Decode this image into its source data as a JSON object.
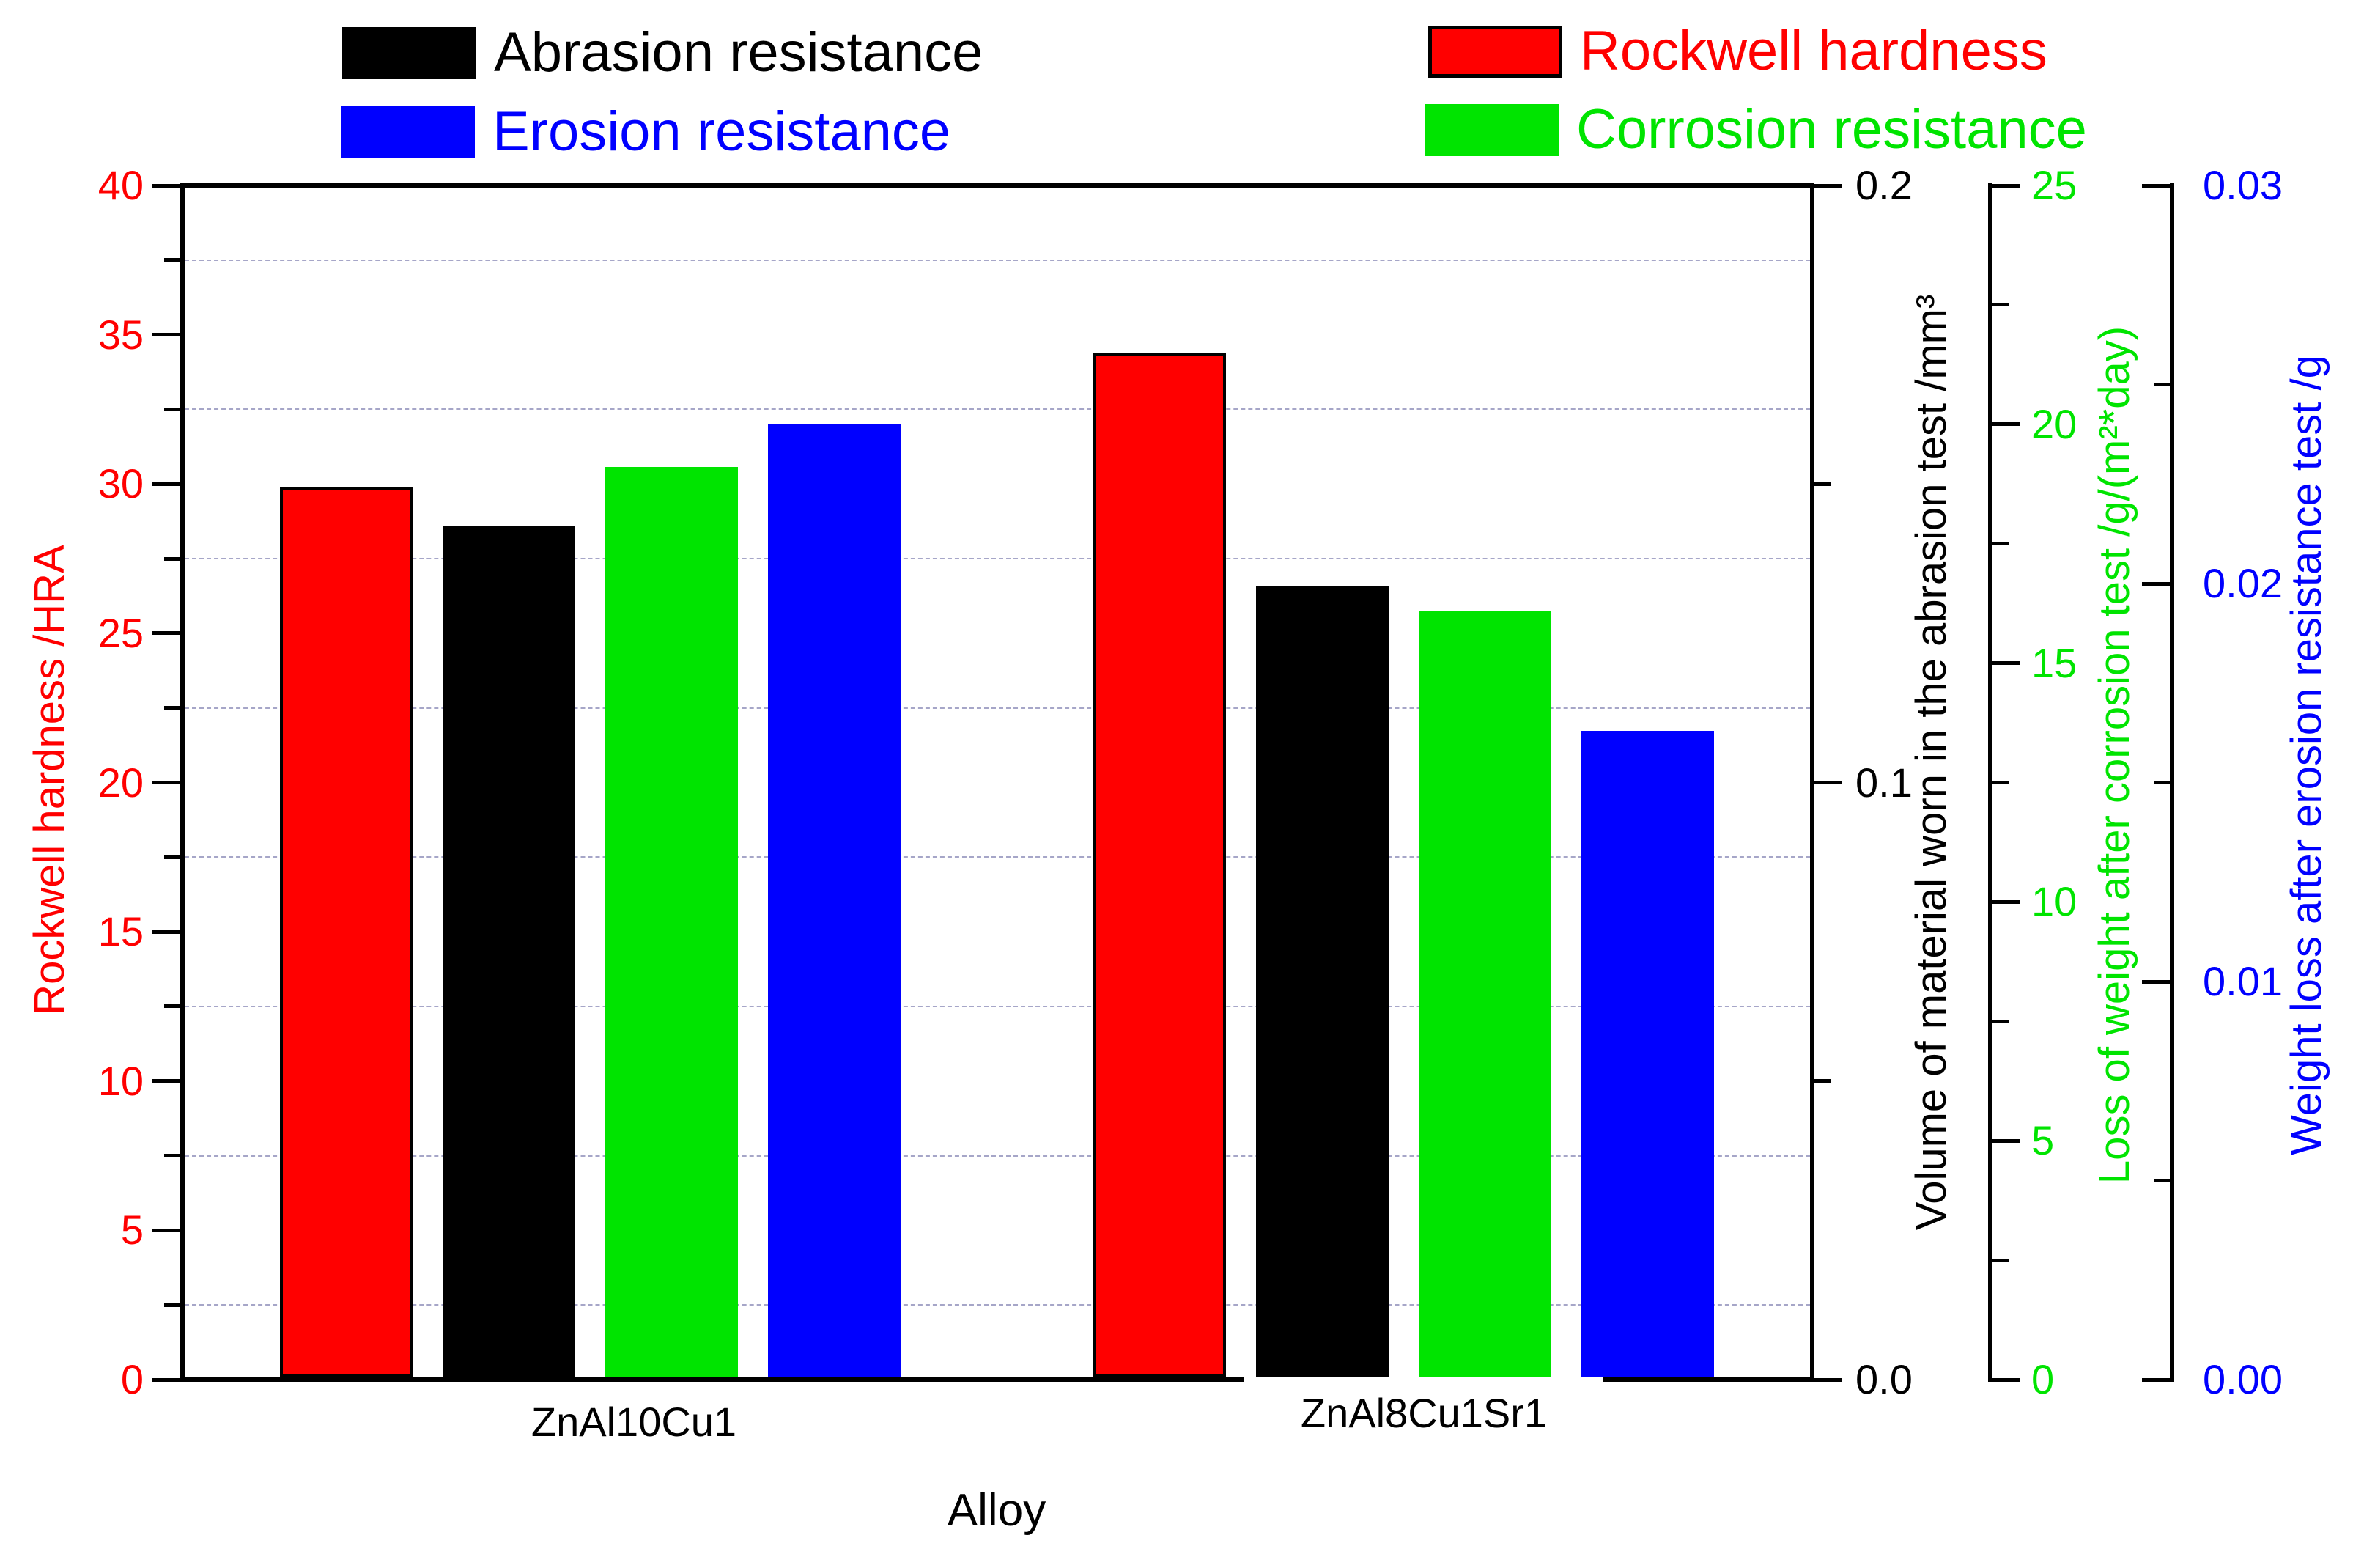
{
  "legend": {
    "items": [
      {
        "label": "Abrasion resistance",
        "color": "#000000",
        "text_color": "#000000",
        "bordered": false
      },
      {
        "label": "Erosion resistance",
        "color": "#0000ff",
        "text_color": "#0000ff",
        "bordered": false
      },
      {
        "label": "Rockwell hardness",
        "color": "#ff0000",
        "text_color": "#ff0000",
        "bordered": true
      },
      {
        "label": "Corrosion resistance",
        "color": "#00e400",
        "text_color": "#00e400",
        "bordered": false
      }
    ]
  },
  "chart_data": {
    "type": "bar",
    "categories": [
      "ZnAl10Cu1",
      "ZnAl8Cu1Sr1"
    ],
    "xlabel": "Alloy",
    "series": [
      {
        "name": "Rockwell hardness",
        "axis": "rockwell",
        "color": "#ff0000",
        "border": "#000000",
        "values": [
          29.9,
          34.4
        ]
      },
      {
        "name": "Abrasion resistance",
        "axis": "abrasion",
        "color": "#000000",
        "border": "",
        "values": [
          0.143,
          0.133
        ]
      },
      {
        "name": "Corrosion resistance",
        "axis": "corrosion",
        "color": "#00e400",
        "border": "",
        "values": [
          19.1,
          16.1
        ]
      },
      {
        "name": "Erosion resistance",
        "axis": "erosion",
        "color": "#0000ff",
        "border": "",
        "values": [
          0.024,
          0.0163
        ]
      }
    ],
    "axes": [
      {
        "id": "rockwell",
        "label": "Rockwell hardness /HRA",
        "color": "#ff0000",
        "range": [
          0,
          40
        ],
        "major": 5,
        "minor": 2.5,
        "tick_labels": [
          "0",
          "5",
          "10",
          "15",
          "20",
          "25",
          "30",
          "35",
          "40"
        ]
      },
      {
        "id": "abrasion",
        "label": "Volume of material worn in the abrasion test /mm³",
        "color": "#000000",
        "range": [
          0,
          0.2
        ],
        "major": 0.1,
        "minor": 0.05,
        "tick_labels": [
          "0.0",
          "0.1",
          "0.2"
        ]
      },
      {
        "id": "corrosion",
        "label": "Loss of weight after corrosion test /g/(m²*day)",
        "color": "#00e400",
        "range": [
          0,
          25
        ],
        "major": 5,
        "minor": 2.5,
        "tick_labels": [
          "0",
          "5",
          "10",
          "15",
          "20",
          "25"
        ]
      },
      {
        "id": "erosion",
        "label": "Weight loss after erosion resistance test /g",
        "color": "#0000ff",
        "range": [
          0,
          0.03
        ],
        "major": 0.01,
        "minor": 0.005,
        "tick_labels": [
          "0.00",
          "0.01",
          "0.02",
          "0.03"
        ]
      }
    ],
    "grid": {
      "on_axis": "rockwell",
      "positions": [
        2.5,
        7.5,
        12.5,
        17.5,
        22.5,
        27.5,
        32.5,
        37.5
      ],
      "style": "dashed",
      "color": "#a6a6c8"
    },
    "legend_position": "top",
    "plot_background": "#ffffff"
  }
}
